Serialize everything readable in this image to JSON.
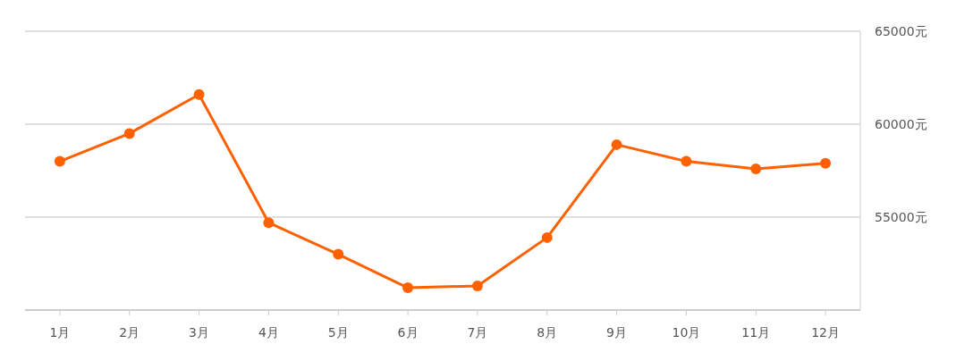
{
  "chart_data": {
    "type": "line",
    "categories": [
      "1月",
      "2月",
      "3月",
      "4月",
      "5月",
      "6月",
      "7月",
      "8月",
      "9月",
      "10月",
      "11月",
      "12月"
    ],
    "series": [
      {
        "color": "#ff6000",
        "values": [
          58000,
          59500,
          61600,
          54700,
          53000,
          51200,
          51300,
          53900,
          58900,
          58000,
          57600,
          57900
        ]
      }
    ],
    "ylim": [
      50000,
      65000
    ],
    "yticks": [
      {
        "value": 55000,
        "label": "55000元"
      },
      {
        "value": 60000,
        "label": "60000元"
      },
      {
        "value": 65000,
        "label": "65000元"
      }
    ],
    "grid": "y",
    "marker": "circle",
    "line_style": "solid"
  }
}
